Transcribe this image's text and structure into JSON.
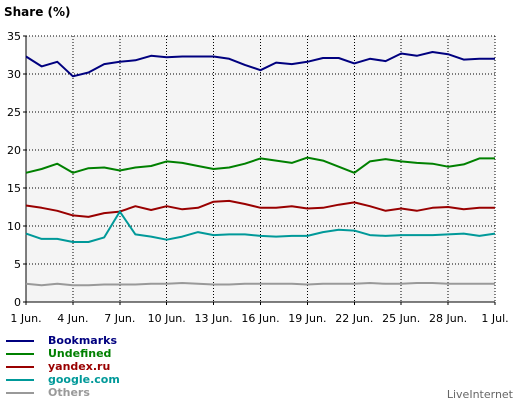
{
  "chart_data": {
    "type": "line",
    "ylabel": "Share (%)",
    "ylim": [
      0,
      35
    ],
    "yticks": [
      0,
      5,
      10,
      15,
      20,
      25,
      30,
      35
    ],
    "xlim": [
      1,
      31
    ],
    "xticks": [
      {
        "x": 1,
        "label": "1 Jun."
      },
      {
        "x": 4,
        "label": "4 Jun."
      },
      {
        "x": 7,
        "label": "7 Jun."
      },
      {
        "x": 10,
        "label": "10 Jun."
      },
      {
        "x": 13,
        "label": "13 Jun."
      },
      {
        "x": 16,
        "label": "16 Jun."
      },
      {
        "x": 19,
        "label": "19 Jun."
      },
      {
        "x": 22,
        "label": "22 Jun."
      },
      {
        "x": 25,
        "label": "25 Jun."
      },
      {
        "x": 28,
        "label": "28 Jun."
      },
      {
        "x": 31,
        "label": "1 Jul."
      }
    ],
    "x": [
      1,
      2,
      3,
      4,
      5,
      6,
      7,
      8,
      9,
      10,
      11,
      12,
      13,
      14,
      15,
      16,
      17,
      18,
      19,
      20,
      21,
      22,
      23,
      24,
      25,
      26,
      27,
      28,
      29,
      30,
      31
    ],
    "grid": true,
    "legend": "bottom-left",
    "series": [
      {
        "name": "Bookmarks",
        "color": "#00007f",
        "values": [
          32.3,
          31.0,
          31.6,
          29.7,
          30.2,
          31.3,
          31.6,
          31.8,
          32.4,
          32.2,
          32.3,
          32.3,
          32.3,
          32.0,
          31.2,
          30.5,
          31.5,
          31.3,
          31.6,
          32.1,
          32.1,
          31.4,
          32.0,
          31.7,
          32.7,
          32.4,
          32.9,
          32.6,
          31.9,
          32.0,
          32.0
        ]
      },
      {
        "name": "Undefined",
        "color": "#008000",
        "values": [
          17.0,
          17.5,
          18.2,
          17.0,
          17.6,
          17.7,
          17.3,
          17.7,
          17.9,
          18.5,
          18.3,
          17.9,
          17.5,
          17.7,
          18.2,
          18.9,
          18.6,
          18.3,
          19.0,
          18.6,
          17.8,
          17.0,
          18.5,
          18.8,
          18.5,
          18.3,
          18.2,
          17.8,
          18.1,
          18.9,
          18.9
        ]
      },
      {
        "name": "yandex.ru",
        "color": "#990000",
        "values": [
          12.7,
          12.4,
          12.0,
          11.4,
          11.2,
          11.7,
          11.9,
          12.6,
          12.1,
          12.6,
          12.2,
          12.4,
          13.2,
          13.3,
          12.9,
          12.4,
          12.4,
          12.6,
          12.3,
          12.4,
          12.8,
          13.1,
          12.6,
          12.0,
          12.3,
          12.0,
          12.4,
          12.5,
          12.2,
          12.4,
          12.4
        ]
      },
      {
        "name": "google.com",
        "color": "#009999",
        "values": [
          9.0,
          8.3,
          8.3,
          7.9,
          7.9,
          8.5,
          11.9,
          8.9,
          8.6,
          8.2,
          8.6,
          9.2,
          8.8,
          8.9,
          8.9,
          8.7,
          8.6,
          8.7,
          8.7,
          9.2,
          9.5,
          9.4,
          8.8,
          8.7,
          8.8,
          8.8,
          8.8,
          8.9,
          9.0,
          8.7,
          9.0
        ]
      },
      {
        "name": "Others",
        "color": "#999999",
        "values": [
          2.4,
          2.2,
          2.4,
          2.2,
          2.2,
          2.3,
          2.3,
          2.3,
          2.4,
          2.4,
          2.5,
          2.4,
          2.3,
          2.3,
          2.4,
          2.4,
          2.4,
          2.4,
          2.3,
          2.4,
          2.4,
          2.4,
          2.5,
          2.4,
          2.4,
          2.5,
          2.5,
          2.4,
          2.4,
          2.4,
          2.4
        ]
      }
    ]
  },
  "branding": "LiveInternet"
}
